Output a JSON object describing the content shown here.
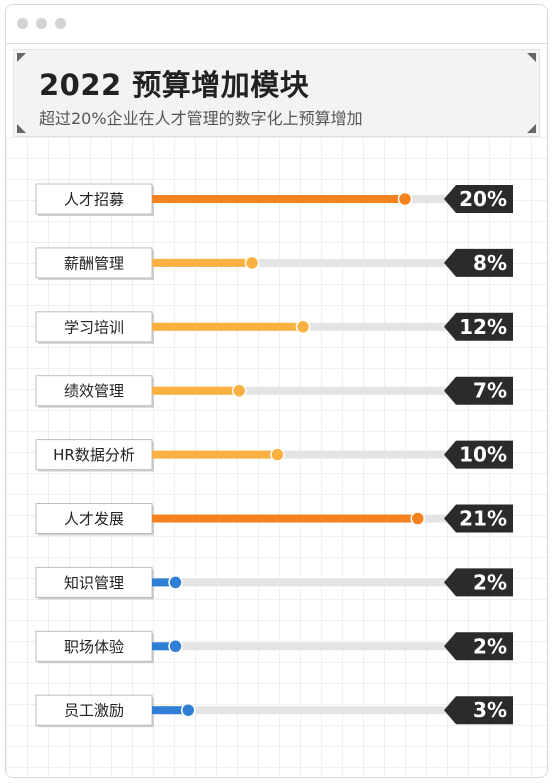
{
  "header": {
    "title": "2022 预算增加模块",
    "subtitle": "超过20%企业在人才管理的数字化上预算增加"
  },
  "colors": {
    "high": "#f5821f",
    "mid": "#fbb042",
    "low": "#2f7fd6",
    "track": "#e4e4e4",
    "badge": "#2b2b2b"
  },
  "chart_data": {
    "type": "bar",
    "title": "2022 预算增加模块",
    "subtitle": "超过20%企业在人才管理的数字化上预算增加",
    "categories": [
      "人才招募",
      "薪酬管理",
      "学习培训",
      "绩效管理",
      "HR数据分析",
      "人才发展",
      "知识管理",
      "职场体验",
      "员工激励"
    ],
    "values": [
      20,
      8,
      12,
      7,
      10,
      21,
      2,
      2,
      3
    ],
    "value_labels": [
      "20%",
      "8%",
      "12%",
      "7%",
      "10%",
      "21%",
      "2%",
      "2%",
      "3%"
    ],
    "unit": "%",
    "orientation": "horizontal",
    "grid": true
  }
}
